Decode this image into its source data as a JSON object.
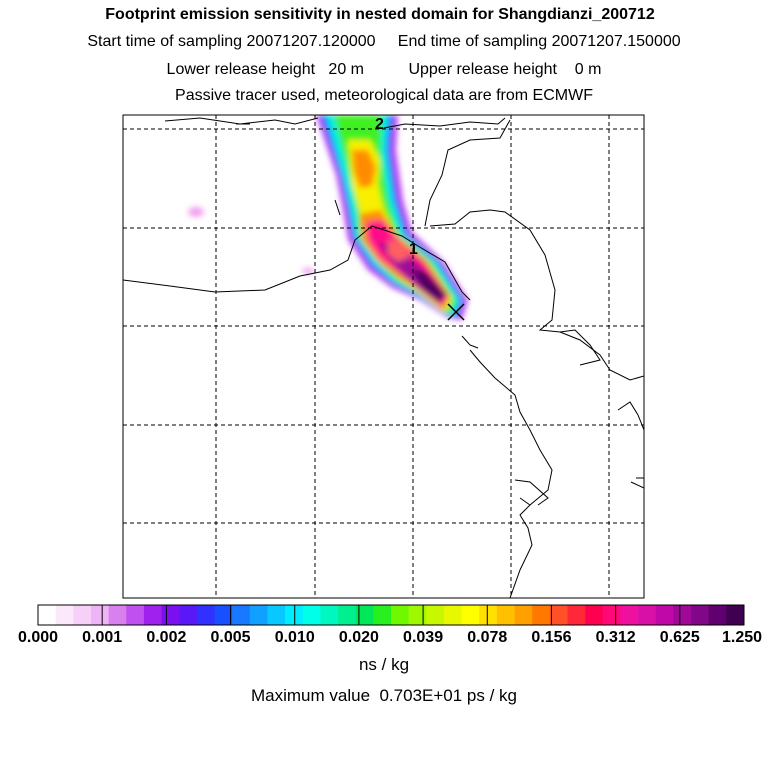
{
  "header": {
    "title": "Footprint emission sensitivity in nested domain for Shangdianzi_200712",
    "line2": "Start time of sampling 20071207.120000     End time of sampling 20071207.150000",
    "line3": "Lower release height   20 m          Upper release height    0 m",
    "line4": "Passive tracer used, meteorological data are from ECMWF"
  },
  "map": {
    "contour_labels": [
      "2",
      "1"
    ],
    "release_marker": "station-cross",
    "grid": "dashed"
  },
  "colorbar": {
    "tick_labels": [
      "0.000",
      "0.001",
      "0.002",
      "0.005",
      "0.010",
      "0.020",
      "0.039",
      "0.078",
      "0.156",
      "0.312",
      "0.625",
      "1.250"
    ],
    "colors": [
      "#ffffff",
      "#fbe8fb",
      "#f7d0f7",
      "#efb4f5",
      "#d880ee",
      "#c050f0",
      "#a020ee",
      "#7a10f0",
      "#5a18f8",
      "#3030ff",
      "#1850ff",
      "#1878ff",
      "#10a0ff",
      "#08c8ff",
      "#00ecff",
      "#00ffe8",
      "#00f8c0",
      "#00f090",
      "#00e858",
      "#28f020",
      "#70f800",
      "#a0f800",
      "#c8f800",
      "#e8f800",
      "#ffff00",
      "#ffe000",
      "#ffc000",
      "#ffa000",
      "#ff7800",
      "#ff5028",
      "#ff2838",
      "#ff0050",
      "#ff0878",
      "#f010a0",
      "#d810a8",
      "#c008a8",
      "#a00898",
      "#800888",
      "#600070",
      "#400050"
    ],
    "units": "ns / kg"
  },
  "footer": {
    "max_value": "Maximum value  0.703E+01 ps / kg"
  }
}
